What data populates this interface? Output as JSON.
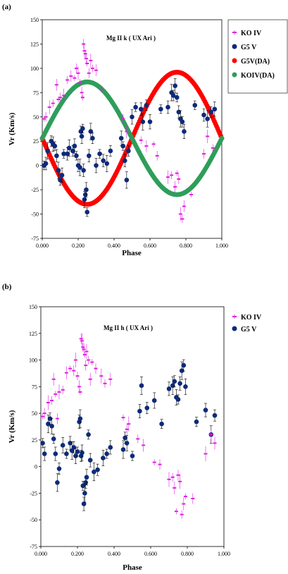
{
  "chart_data": [
    {
      "type": "scatter",
      "panel_label": "(a)",
      "annotation": "Mg II k ( UX Ari )",
      "xlabel": "Phase",
      "ylabel": "Vr (Km/s)",
      "xlim": [
        0,
        1
      ],
      "ylim": [
        -75,
        150
      ],
      "x_ticks": [
        "0.000",
        "0.200",
        "0.400",
        "0.600",
        "0.800",
        "1.000"
      ],
      "y_ticks": [
        "-75",
        "-50",
        "-25",
        "0",
        "25",
        "50",
        "75",
        "100",
        "125",
        "150"
      ],
      "legend_position": "right",
      "series": [
        {
          "name": "KO IV",
          "color": "#e020e0",
          "marker": "dash-errorbar",
          "x": [
            0.01,
            0.02,
            0.04,
            0.06,
            0.08,
            0.09,
            0.1,
            0.12,
            0.14,
            0.16,
            0.18,
            0.19,
            0.2,
            0.21,
            0.22,
            0.225,
            0.23,
            0.235,
            0.24,
            0.245,
            0.25,
            0.26,
            0.27,
            0.28,
            0.3,
            0.33,
            0.45,
            0.47,
            0.55,
            0.58,
            0.62,
            0.64,
            0.7,
            0.72,
            0.74,
            0.75,
            0.76,
            0.77,
            0.78,
            0.79,
            0.83,
            0.9,
            0.92,
            0.95
          ],
          "y": [
            48,
            50,
            60,
            64,
            83,
            68,
            70,
            72,
            88,
            92,
            90,
            100,
            95,
            85,
            75,
            70,
            125,
            118,
            115,
            110,
            105,
            95,
            108,
            100,
            98,
            78,
            48,
            35,
            26,
            20,
            22,
            10,
            -12,
            -10,
            -22,
            -8,
            -14,
            -50,
            -55,
            -42,
            -30,
            12,
            30,
            18
          ]
        },
        {
          "name": "G5 V",
          "color": "#0d2a7a",
          "marker": "circle-errorbar",
          "x": [
            0.01,
            0.02,
            0.03,
            0.05,
            0.06,
            0.07,
            0.08,
            0.09,
            0.1,
            0.11,
            0.12,
            0.14,
            0.15,
            0.17,
            0.18,
            0.19,
            0.2,
            0.21,
            0.215,
            0.22,
            0.225,
            0.23,
            0.235,
            0.24,
            0.245,
            0.25,
            0.26,
            0.27,
            0.28,
            0.3,
            0.32,
            0.34,
            0.36,
            0.38,
            0.44,
            0.45,
            0.46,
            0.47,
            0.48,
            0.5,
            0.52,
            0.55,
            0.56,
            0.58,
            0.6,
            0.66,
            0.7,
            0.72,
            0.73,
            0.74,
            0.75,
            0.76,
            0.77,
            0.78,
            0.79,
            0.85,
            0.9,
            0.92,
            0.94,
            0.96
          ],
          "y": [
            0,
            2,
            15,
            25,
            22,
            20,
            10,
            -5,
            -15,
            -10,
            12,
            12,
            18,
            15,
            20,
            10,
            0,
            -2,
            35,
            30,
            38,
            -5,
            -35,
            -30,
            -25,
            -48,
            10,
            35,
            28,
            0,
            12,
            5,
            2,
            15,
            28,
            20,
            5,
            -15,
            15,
            50,
            60,
            58,
            45,
            62,
            45,
            58,
            60,
            75,
            72,
            82,
            70,
            55,
            48,
            45,
            35,
            62,
            52,
            48,
            55,
            58
          ]
        },
        {
          "name": "G5V(DA)",
          "color": "#ff0000",
          "marker": "circle",
          "curve": "sine",
          "gamma": 28,
          "amplitude": 68,
          "phase_peak": 0.75,
          "phase_range": [
            0.0,
            1.0
          ]
        },
        {
          "name": "KOIV(DA)",
          "color": "#2e9e5a",
          "marker": "circle",
          "curve": "sine",
          "gamma": 28,
          "amplitude": 58,
          "phase_peak": 0.25,
          "phase_range": [
            0.0,
            1.0
          ]
        }
      ]
    },
    {
      "type": "scatter",
      "panel_label": "(b)",
      "annotation": "Mg II h ( UX Ari )",
      "xlabel": "Phase",
      "ylabel": "Vr (Km/s)",
      "xlim": [
        0,
        1
      ],
      "ylim": [
        -75,
        150
      ],
      "x_ticks": [
        "0.000",
        "0.200",
        "0.400",
        "0.600",
        "0.800",
        "1.000"
      ],
      "y_ticks": [
        "-75",
        "-50",
        "-25",
        "0",
        "25",
        "50",
        "75",
        "100",
        "125",
        "150"
      ],
      "legend_position": "top-right",
      "series": [
        {
          "name": "KO IV",
          "color": "#e020e0",
          "marker": "dash-errorbar",
          "x": [
            0.01,
            0.02,
            0.04,
            0.06,
            0.07,
            0.08,
            0.09,
            0.1,
            0.12,
            0.14,
            0.16,
            0.18,
            0.19,
            0.2,
            0.21,
            0.215,
            0.22,
            0.225,
            0.23,
            0.235,
            0.24,
            0.245,
            0.25,
            0.26,
            0.27,
            0.28,
            0.3,
            0.33,
            0.35,
            0.38,
            0.45,
            0.47,
            0.48,
            0.53,
            0.56,
            0.62,
            0.65,
            0.7,
            0.72,
            0.73,
            0.74,
            0.75,
            0.76,
            0.77,
            0.78,
            0.79,
            0.83,
            0.9,
            0.93,
            0.95
          ],
          "y": [
            47,
            50,
            60,
            62,
            82,
            68,
            45,
            70,
            72,
            88,
            92,
            90,
            100,
            85,
            75,
            70,
            120,
            118,
            112,
            110,
            105,
            95,
            108,
            100,
            82,
            98,
            92,
            85,
            78,
            82,
            46,
            35,
            40,
            26,
            20,
            4,
            2,
            -12,
            -10,
            -20,
            -42,
            -8,
            -14,
            -45,
            -35,
            -28,
            -30,
            12,
            30,
            22
          ]
        },
        {
          "name": "G5 V",
          "color": "#0d2a7a",
          "marker": "circle-errorbar",
          "x": [
            0.01,
            0.02,
            0.04,
            0.05,
            0.06,
            0.07,
            0.08,
            0.09,
            0.1,
            0.12,
            0.14,
            0.16,
            0.17,
            0.18,
            0.19,
            0.2,
            0.21,
            0.215,
            0.22,
            0.225,
            0.23,
            0.235,
            0.24,
            0.245,
            0.25,
            0.26,
            0.27,
            0.29,
            0.31,
            0.34,
            0.36,
            0.38,
            0.45,
            0.46,
            0.47,
            0.5,
            0.54,
            0.55,
            0.58,
            0.62,
            0.66,
            0.7,
            0.72,
            0.73,
            0.74,
            0.75,
            0.76,
            0.77,
            0.78,
            0.79,
            0.85,
            0.9,
            0.93,
            0.95
          ],
          "y": [
            22,
            12,
            40,
            45,
            38,
            26,
            12,
            -15,
            -2,
            20,
            12,
            22,
            15,
            18,
            10,
            14,
            42,
            45,
            10,
            13,
            -18,
            -35,
            -25,
            -15,
            -10,
            30,
            6,
            -5,
            -3,
            8,
            12,
            18,
            16,
            27,
            22,
            10,
            52,
            76,
            55,
            62,
            40,
            73,
            76,
            80,
            65,
            63,
            78,
            90,
            95,
            75,
            42,
            53,
            30,
            48
          ]
        }
      ]
    }
  ]
}
